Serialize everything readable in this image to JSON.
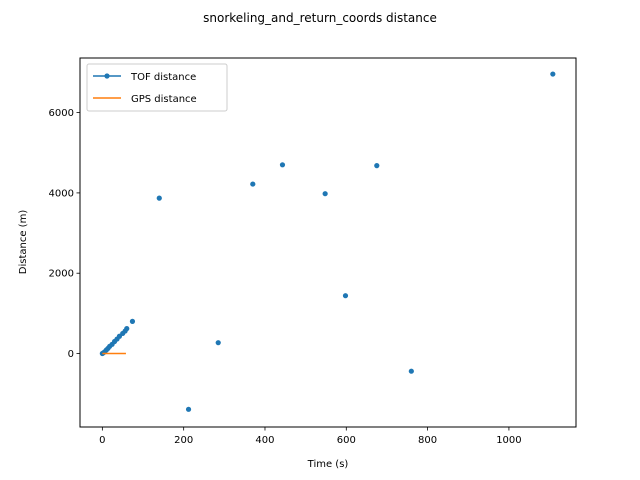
{
  "chart_data": {
    "type": "scatter",
    "title": "snorkeling_and_return_coords distance",
    "xlabel": "Time (s)",
    "ylabel": "Distance (m)",
    "xlim": [
      -55,
      1165
    ],
    "ylim": [
      -1830,
      7360
    ],
    "xticks": [
      0,
      200,
      400,
      600,
      800,
      1000
    ],
    "yticks": [
      0,
      2000,
      4000,
      6000
    ],
    "grid": false,
    "legend_position": "top-left",
    "series": [
      {
        "name": "TOF distance",
        "type": "line-marker",
        "color": "#1f77b4",
        "points": [
          [
            0,
            0
          ],
          [
            3,
            20
          ],
          [
            6,
            45
          ],
          [
            10,
            90
          ],
          [
            14,
            130
          ],
          [
            18,
            180
          ],
          [
            24,
            230
          ],
          [
            30,
            300
          ],
          [
            36,
            360
          ],
          [
            42,
            430
          ],
          [
            50,
            500
          ],
          [
            56,
            560
          ],
          [
            60,
            620
          ],
          [
            74,
            800
          ],
          [
            140,
            3870
          ],
          [
            212,
            -1390
          ],
          [
            285,
            270
          ],
          [
            370,
            4220
          ],
          [
            443,
            4700
          ],
          [
            548,
            3980
          ],
          [
            598,
            1440
          ],
          [
            675,
            4680
          ],
          [
            760,
            -440
          ],
          [
            1108,
            6960
          ]
        ]
      },
      {
        "name": "GPS distance",
        "type": "line",
        "color": "#ff7f0e",
        "points": [
          [
            0,
            0
          ],
          [
            58,
            0
          ]
        ]
      }
    ]
  }
}
